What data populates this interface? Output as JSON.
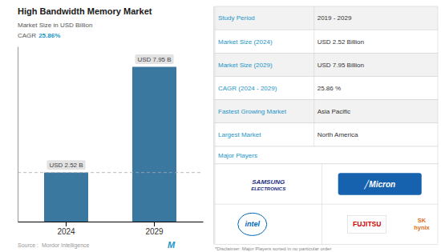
{
  "chart_data": {
    "type": "bar",
    "title": "High Bandwidth Memory Market",
    "subtitle": "Market Size in USD Billion",
    "cagr": {
      "label": "CAGR",
      "value": "25.86%"
    },
    "categories": [
      "2024",
      "2029"
    ],
    "values": [
      2.52,
      7.95
    ],
    "value_labels": [
      "USD 2.52 B",
      "USD 7.95 B"
    ],
    "data_labels": true,
    "color": "#3a78a0",
    "ylim": [
      0,
      9.0
    ],
    "yticks": [],
    "tick_labels": "x",
    "grid": false,
    "reference_line": 2.52,
    "source": "Source :  Mordor Intelligence",
    "brand_mark": "M",
    "table": {
      "headers": [
        "Study Period",
        "Market Size (2024)",
        "Market Size (2029)",
        "CAGR (2024 - 2029)",
        "Fastest Growing Market",
        "Largest Market",
        "Major Players"
      ],
      "values": [
        "2019 - 2029",
        "USD 2.52 Billion",
        "USD 7.95 Billion",
        "25.86 %",
        "Asia Pacific",
        "North America"
      ]
    },
    "logos": [
      "SAMSUNG",
      "ELECTRONICS",
      "╱Micron",
      "intel",
      "FUJITSU",
      "SK\nhynix"
    ],
    "disclaimer": "*Disclaimer: Major Players sorted in no particular order"
  }
}
